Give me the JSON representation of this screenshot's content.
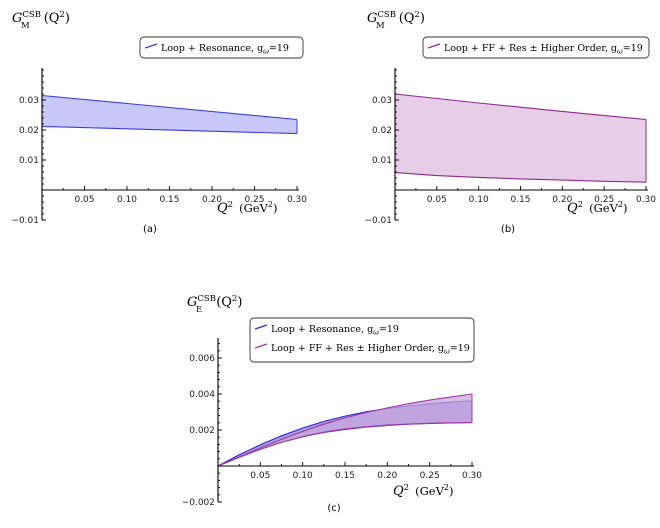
{
  "chart_data": [
    {
      "id": "a",
      "type": "area",
      "caption": "(a)",
      "ylabel_main": "G",
      "ylabel_sup": "CSB",
      "ylabel_sub": "M",
      "ylabel_arg": "(Q",
      "ylabel_arg_sup": "2",
      "ylabel_arg_close": ")",
      "xlabel_main": "Q",
      "xlabel_sup": "2",
      "xlabel_unit": "(GeV",
      "xlabel_unit_sup": "2",
      "xlabel_unit_close": ")",
      "xlim": [
        0,
        0.3
      ],
      "ylim": [
        -0.01,
        0.04
      ],
      "xticks": [
        0.05,
        0.1,
        0.15,
        0.2,
        0.25,
        0.3
      ],
      "xtick_labels": [
        "0.05",
        "0.10",
        "0.15",
        "0.20",
        "0.25",
        "0.30"
      ],
      "yticks": [
        -0.01,
        0.01,
        0.02,
        0.03
      ],
      "ytick_labels": [
        "−0.01",
        "0.01",
        "0.02",
        "0.03"
      ],
      "series": [
        {
          "name": "Loop + Resonance, g",
          "name_sub": "ω",
          "name_tail": "=19",
          "color": "#3b3bdc",
          "fill": "#c8c8f8",
          "x": [
            0,
            0.3
          ],
          "upper": [
            0.0315,
            0.0235
          ],
          "lower": [
            0.0212,
            0.0188
          ]
        }
      ]
    },
    {
      "id": "b",
      "type": "area",
      "caption": "(b)",
      "ylabel_main": "G",
      "ylabel_sup": "CSB",
      "ylabel_sub": "M",
      "ylabel_arg": "(Q",
      "ylabel_arg_sup": "2",
      "ylabel_arg_close": ")",
      "xlabel_main": "Q",
      "xlabel_sup": "2",
      "xlabel_unit": "(GeV",
      "xlabel_unit_sup": "2",
      "xlabel_unit_close": ")",
      "xlim": [
        0,
        0.3
      ],
      "ylim": [
        -0.01,
        0.04
      ],
      "xticks": [
        0.05,
        0.1,
        0.15,
        0.2,
        0.25,
        0.3
      ],
      "xtick_labels": [
        "0.05",
        "0.10",
        "0.15",
        "0.20",
        "0.25",
        "0.30"
      ],
      "yticks": [
        -0.01,
        0.01,
        0.02,
        0.03
      ],
      "ytick_labels": [
        "−0.01",
        "0.01",
        "0.02",
        "0.03"
      ],
      "series": [
        {
          "name": "Loop + FF + Res ± Higher Order, g",
          "name_sub": "ω",
          "name_tail": "=19",
          "color": "#8b2a8b",
          "fill": "#e8cde8",
          "x": [
            0,
            0.05,
            0.1,
            0.15,
            0.2,
            0.25,
            0.3
          ],
          "upper": [
            0.032,
            0.0305,
            0.029,
            0.0276,
            0.0262,
            0.0248,
            0.0235
          ],
          "lower": [
            0.0058,
            0.0048,
            0.0042,
            0.0037,
            0.0033,
            0.0029,
            0.0026
          ]
        }
      ]
    },
    {
      "id": "c",
      "type": "area",
      "caption": "(c)",
      "ylabel_main": "G",
      "ylabel_sup": "CSB",
      "ylabel_sub": "E",
      "ylabel_arg": "(Q",
      "ylabel_arg_sup": "2",
      "ylabel_arg_close": ")",
      "xlabel_main": "Q",
      "xlabel_sup": "2",
      "xlabel_unit": "(GeV",
      "xlabel_unit_sup": "2",
      "xlabel_unit_close": ")",
      "xlim": [
        0,
        0.3
      ],
      "ylim": [
        -0.002,
        0.007
      ],
      "xticks": [
        0.05,
        0.1,
        0.15,
        0.2,
        0.25,
        0.3
      ],
      "xtick_labels": [
        "0.05",
        "0.10",
        "0.15",
        "0.20",
        "0.25",
        "0.30"
      ],
      "yticks": [
        -0.002,
        0.002,
        0.004,
        0.006
      ],
      "ytick_labels": [
        "−0.002",
        "0.002",
        "0.004",
        "0.006"
      ],
      "series": [
        {
          "name": "Loop + Resonance, g",
          "name_sub": "ω",
          "name_tail": "=19",
          "color": "#2b2bd6",
          "fill": "#8a7ad8",
          "x": [
            0,
            0.025,
            0.05,
            0.075,
            0.1,
            0.125,
            0.15,
            0.175,
            0.2,
            0.225,
            0.25,
            0.275,
            0.3
          ],
          "upper": [
            0,
            0.00062,
            0.00118,
            0.00168,
            0.00211,
            0.00248,
            0.00277,
            0.00301,
            0.0032,
            0.00334,
            0.00346,
            0.00355,
            0.00362
          ],
          "lower": [
            0,
            0.0005,
            0.00094,
            0.00132,
            0.00163,
            0.00186,
            0.00203,
            0.00216,
            0.00225,
            0.00232,
            0.00236,
            0.00239,
            0.00241
          ]
        },
        {
          "name": "Loop + FF + Res ± Higher Order, g",
          "name_sub": "ω",
          "name_tail": "=19",
          "color": "#a23aa2",
          "fill": "#c9a6dc",
          "x": [
            0,
            0.025,
            0.05,
            0.075,
            0.1,
            0.125,
            0.15,
            0.175,
            0.2,
            0.225,
            0.25,
            0.275,
            0.3
          ],
          "upper": [
            0,
            0.0005,
            0.001,
            0.00148,
            0.00192,
            0.00232,
            0.00267,
            0.00297,
            0.00323,
            0.00346,
            0.00366,
            0.00384,
            0.004
          ],
          "lower": [
            0,
            0.00048,
            0.00092,
            0.00131,
            0.00163,
            0.00188,
            0.00206,
            0.00218,
            0.00227,
            0.00233,
            0.00237,
            0.0024,
            0.00242
          ]
        }
      ]
    }
  ]
}
